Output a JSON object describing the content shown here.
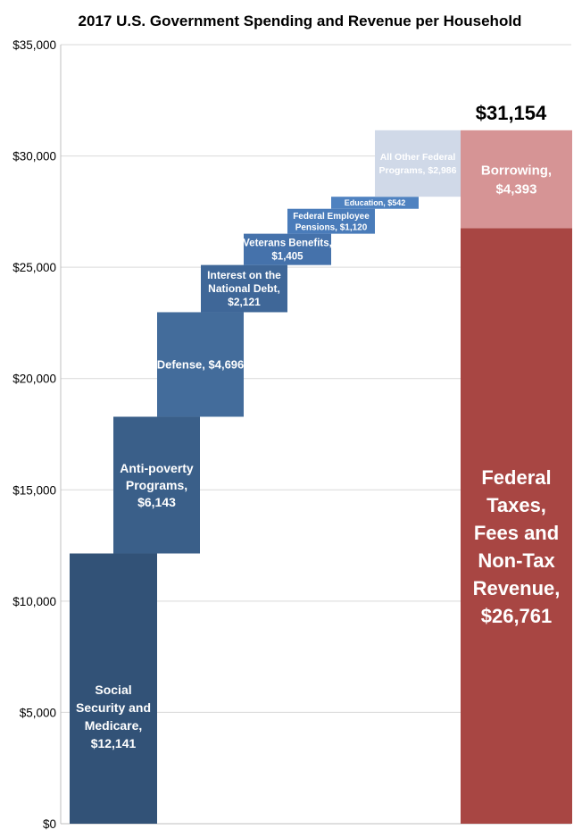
{
  "chart_data": {
    "type": "bar",
    "subtype": "waterfall-stacked",
    "title": "2017 U.S. Government Spending and Revenue per Household",
    "ylim": [
      0,
      35000
    ],
    "yticks": [
      "$0",
      "$5,000",
      "$10,000",
      "$15,000",
      "$20,000",
      "$25,000",
      "$30,000",
      "$35,000"
    ],
    "grid": true,
    "spending": [
      {
        "label": [
          "Social",
          "Security and",
          "Medicare,",
          "$12,141"
        ],
        "value": 12141,
        "color": "#325277"
      },
      {
        "label": [
          "Anti-poverty",
          "Programs,",
          "$6,143"
        ],
        "value": 6143,
        "color": "#3a5f89"
      },
      {
        "label": [
          "Defense, $4,696"
        ],
        "value": 4696,
        "color": "#436c9b"
      },
      {
        "label": [
          "Interest on the",
          "National Debt,",
          "$2,121"
        ],
        "value": 2121,
        "color": "#3f6798"
      },
      {
        "label": [
          "Veterans Benefits,",
          "$1,405"
        ],
        "value": 1405,
        "color": "#4572ab"
      },
      {
        "label": [
          "Federal Employee",
          "Pensions, $1,120"
        ],
        "value": 1120,
        "color": "#4a7cba"
      },
      {
        "label": [
          "Education,  $542"
        ],
        "value": 542,
        "color": "#4f82c0"
      },
      {
        "label": [
          "All Other Federal",
          "Programs, $2,986"
        ],
        "value": 2986,
        "color": "#d0d9e8"
      }
    ],
    "revenue": [
      {
        "label": [
          "Federal",
          "Taxes,",
          "Fees and",
          "Non-Tax",
          "Revenue,",
          "$26,761"
        ],
        "value": 26761,
        "color": "#a84643"
      },
      {
        "label": [
          "Borrowing,",
          "$4,393"
        ],
        "value": 4393,
        "color": "#d69495"
      }
    ],
    "total_label": "$31,154",
    "total": 31154
  }
}
